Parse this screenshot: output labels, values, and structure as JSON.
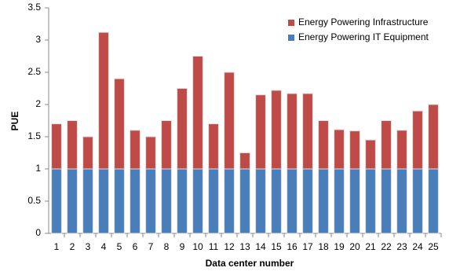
{
  "chart_data": {
    "type": "stacked_bar",
    "x_label": "Data center number",
    "y_label": "PUE",
    "categories": [
      "1",
      "2",
      "3",
      "4",
      "5",
      "6",
      "7",
      "8",
      "9",
      "10",
      "11",
      "12",
      "13",
      "14",
      "15",
      "16",
      "17",
      "18",
      "19",
      "20",
      "21",
      "22",
      "23",
      "24",
      "25"
    ],
    "series": [
      {
        "name": "Energy Powering IT Equipment",
        "color": "#4a7ebb",
        "values": [
          1,
          1,
          1,
          1,
          1,
          1,
          1,
          1,
          1,
          1,
          1,
          1,
          1,
          1,
          1,
          1,
          1,
          1,
          1,
          1,
          1,
          1,
          1,
          1,
          1
        ]
      },
      {
        "name": "Energy Powering Infrastructure",
        "color": "#be4b48",
        "values": [
          0.7,
          0.75,
          0.5,
          2.12,
          1.4,
          0.6,
          0.5,
          0.75,
          1.25,
          1.75,
          0.7,
          1.5,
          0.25,
          1.15,
          1.22,
          1.17,
          1.17,
          0.75,
          0.61,
          0.59,
          0.45,
          0.75,
          0.6,
          0.9,
          1.0
        ]
      }
    ],
    "ylim": [
      0,
      3.5
    ],
    "yticks": [
      0,
      0.5,
      1,
      1.5,
      2,
      2.5,
      3,
      3.5
    ],
    "legend": "top-right"
  }
}
